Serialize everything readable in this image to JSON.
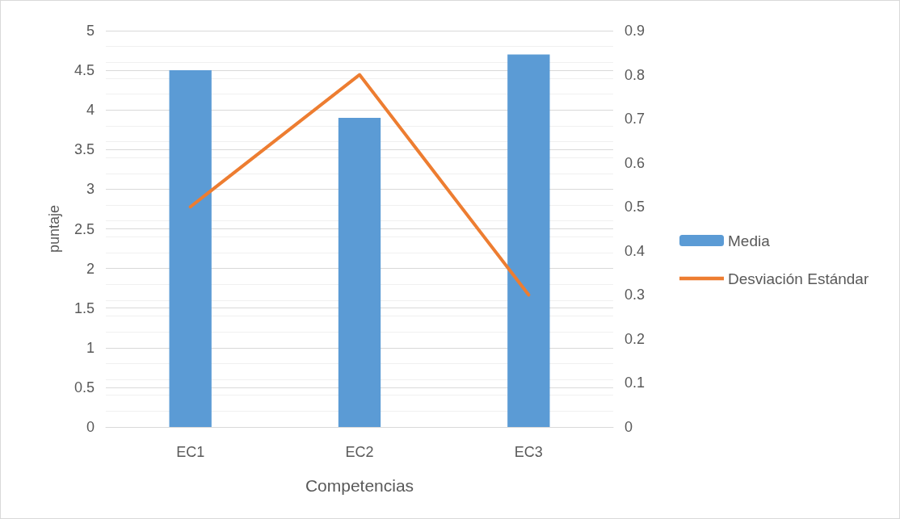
{
  "chart_data": {
    "type": "bar",
    "xlabel": "Competencias",
    "ylabel": "puntaje",
    "categories": [
      "EC1",
      "EC2",
      "EC3"
    ],
    "series": [
      {
        "name": "Media",
        "color": "#5b9bd5",
        "values": [
          4.5,
          3.9,
          4.7
        ]
      },
      {
        "name": "Desviación Estándar",
        "type": "line",
        "axis": "y2",
        "color": "#ed7d31",
        "values": [
          0.5,
          0.8,
          0.3
        ]
      }
    ],
    "ylim": [
      0,
      5
    ],
    "yticks": [
      0,
      0.5,
      1,
      1.5,
      2,
      2.5,
      3,
      3.5,
      4,
      4.5,
      5
    ],
    "y2lim": [
      0,
      0.9
    ],
    "y2ticks": [
      0,
      0.1,
      0.2,
      0.3,
      0.4,
      0.5,
      0.6,
      0.7,
      0.8,
      0.9
    ],
    "grid": "y",
    "legend": "right",
    "marker": "none",
    "line_style": "solid"
  }
}
